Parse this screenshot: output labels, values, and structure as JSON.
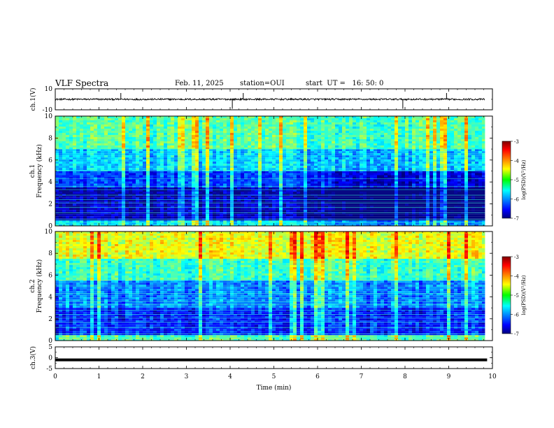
{
  "header": {
    "title": "VLF Spectra",
    "date": "Feb. 11, 2025",
    "station": "station=OUI",
    "start": "start  UT =   16: 50: 0"
  },
  "chart_data": [
    {
      "type": "line",
      "panel": "ch1-waveform",
      "ylabel": "ch.1(V)",
      "ylim": [
        -10,
        10
      ],
      "yticks": [
        10,
        -10
      ],
      "x_unit": "min",
      "xlim": [
        0,
        10
      ],
      "data_end": 9.83,
      "baseline": 0,
      "description_values": {
        "typical_amplitude_V": 0.8,
        "spike_times_min": [
          1.5,
          4.05,
          4.3,
          7.95,
          8.95
        ]
      }
    },
    {
      "type": "heatmap",
      "panel": "ch1-spectrogram",
      "ylabel": "ch.1\nFrequency (kHz)",
      "ylabel_lines": [
        "ch.1",
        "Frequency (kHz)"
      ],
      "ylim": [
        0,
        10
      ],
      "yticks": [
        0,
        2,
        4,
        6,
        8,
        10
      ],
      "xlim": [
        0,
        10
      ],
      "data_end": 9.83,
      "colorbar": {
        "label": "log(PSD)(V²/Hz)",
        "range": [
          -7,
          -3
        ],
        "ticks": [
          -3,
          -4,
          -5,
          -6,
          -7
        ]
      },
      "bands_log_psd": [
        {
          "f_from": 0,
          "f_to": 0.5,
          "level": -5.6
        },
        {
          "f_from": 0.5,
          "f_to": 2.6,
          "level": -6.8
        },
        {
          "f_from": 2.6,
          "f_to": 3.5,
          "level": -6.9
        },
        {
          "f_from": 3.5,
          "f_to": 5.0,
          "level": -6.3
        },
        {
          "f_from": 5.0,
          "f_to": 7.0,
          "level": -5.7
        },
        {
          "f_from": 7.0,
          "f_to": 10.0,
          "level": -5.2
        }
      ]
    },
    {
      "type": "heatmap",
      "panel": "ch2-spectrogram",
      "ylabel": "ch.2\nFrequency (kHz)",
      "ylabel_lines": [
        "ch.2",
        "Frequency (kHz)"
      ],
      "ylim": [
        0,
        10
      ],
      "yticks": [
        0,
        2,
        4,
        6,
        8,
        10
      ],
      "xlim": [
        0,
        10
      ],
      "data_end": 9.83,
      "colorbar": {
        "label": "log(PSD)(V²/Hz)",
        "range": [
          -7,
          -3
        ],
        "ticks": [
          -3,
          -4,
          -5,
          -6,
          -7
        ]
      },
      "bands_log_psd": [
        {
          "f_from": 0,
          "f_to": 0.5,
          "level": -5.2
        },
        {
          "f_from": 0.5,
          "f_to": 3.0,
          "level": -6.4
        },
        {
          "f_from": 3.0,
          "f_to": 5.5,
          "level": -6.0
        },
        {
          "f_from": 5.5,
          "f_to": 7.5,
          "level": -5.3
        },
        {
          "f_from": 7.5,
          "f_to": 10.0,
          "level": -4.6
        }
      ]
    },
    {
      "type": "line",
      "panel": "ch3-waveform",
      "ylabel": "ch.3(V)",
      "ylim": [
        -5,
        5
      ],
      "yticks": [
        5,
        0,
        -5
      ],
      "xlim": [
        0,
        10
      ],
      "data_end": 9.83,
      "values": {
        "constant_V": -1.0
      },
      "xlabel": "Time  (min)",
      "xticks": [
        0,
        1,
        2,
        3,
        4,
        5,
        6,
        7,
        8,
        9,
        10
      ]
    }
  ],
  "colors": {
    "axis": "#000000",
    "background": "#ffffff"
  }
}
